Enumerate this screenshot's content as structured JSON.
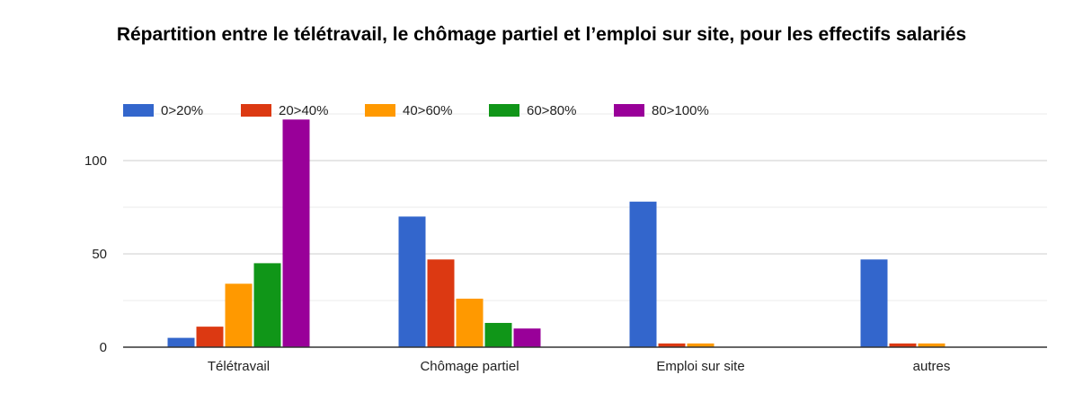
{
  "chart_data": {
    "type": "bar",
    "title": "Répartition entre le télétravail, le chômage partiel et l’emploi sur site, pour les effectifs salariés",
    "xlabel": "",
    "ylabel": "",
    "categories": [
      "Télétravail",
      "Chômage partiel",
      "Emploi sur site",
      "autres"
    ],
    "series": [
      {
        "name": "0>20%",
        "color": "#3366cc",
        "values": [
          5,
          70,
          78,
          47
        ]
      },
      {
        "name": "20>40%",
        "color": "#dc3912",
        "values": [
          11,
          47,
          2,
          2
        ]
      },
      {
        "name": "40>60%",
        "color": "#ff9900",
        "values": [
          34,
          26,
          2,
          2
        ]
      },
      {
        "name": "60>80%",
        "color": "#109618",
        "values": [
          45,
          13,
          0,
          0
        ]
      },
      {
        "name": "80>100%",
        "color": "#990099",
        "values": [
          122,
          10,
          0,
          0
        ]
      }
    ],
    "yticks": [
      0,
      50,
      100
    ],
    "ylim": [
      0,
      125
    ],
    "grid": true,
    "legend_position": "top-left"
  }
}
